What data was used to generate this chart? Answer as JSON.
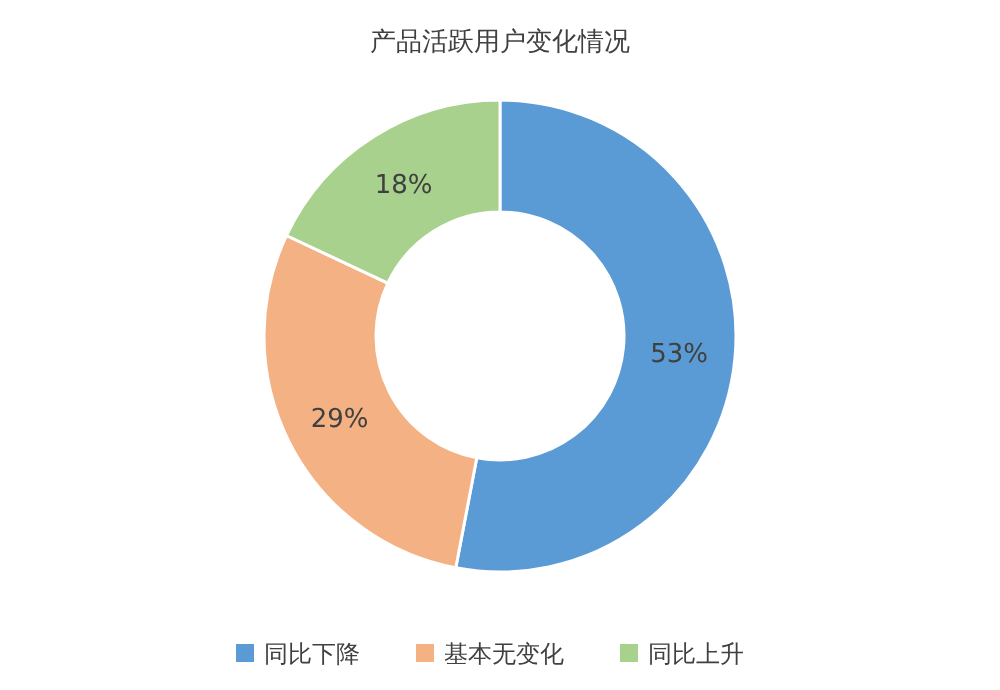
{
  "chart_data": {
    "type": "donut",
    "title": "产品活跃用户变化情况",
    "categories": [
      "同比下降",
      "基本无变化",
      "同比上升"
    ],
    "values": [
      53,
      29,
      18
    ],
    "colors": [
      "#5b9bd5",
      "#f4b183",
      "#a9d18e"
    ],
    "value_labels": [
      "53%",
      "29%",
      "18%"
    ],
    "legend": "bottom"
  }
}
